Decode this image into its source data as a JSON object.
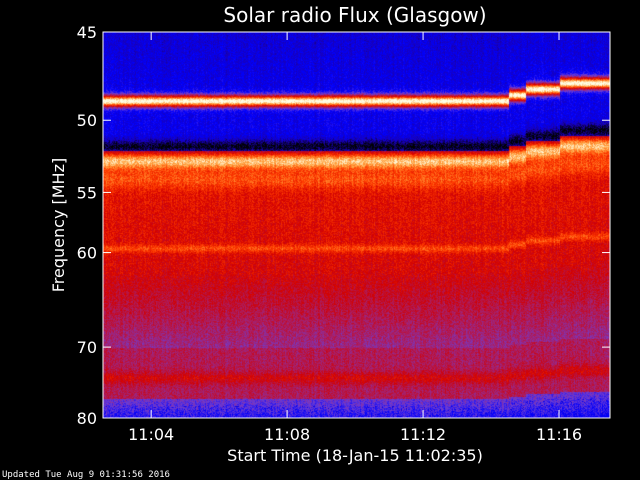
{
  "chart_data": {
    "type": "heatmap",
    "title": "Solar radio Flux (Glasgow)",
    "xlabel": "Start Time (18-Jan-15 11:02:35)",
    "ylabel": "Frequency [MHz]",
    "x_tick_labels": [
      "11:04",
      "11:08",
      "11:12",
      "11:16"
    ],
    "x_ticks_minutes": [
      4,
      8,
      12,
      16
    ],
    "xlim_minutes": [
      2.583,
      17.5
    ],
    "y_tick_labels": [
      "45",
      "50",
      "55",
      "60",
      "70",
      "80"
    ],
    "y_ticks_mhz": [
      45,
      50,
      55,
      60,
      70,
      80
    ],
    "ylim_mhz": [
      45,
      80
    ],
    "y_scale": "reciprocal",
    "colormap": [
      "#000000",
      "#1a00b4",
      "#0000ff",
      "#6e3cd2",
      "#aa1e64",
      "#d20000",
      "#ff3c00",
      "#ffa03c",
      "#ffffe6"
    ],
    "bands": [
      {
        "f": 48.8,
        "level": 0.97,
        "drift_step_minutes": [
          14.5,
          15.0,
          16.0
        ]
      },
      {
        "f": 52.7,
        "level": 0.82
      },
      {
        "f": 54.0,
        "level": 0.78
      },
      {
        "f": 59.6,
        "level": 0.7
      },
      {
        "f": 74.0,
        "level": 0.68
      }
    ]
  },
  "footer": {
    "updated": "Updated Tue Aug  9 01:31:56 2016"
  }
}
